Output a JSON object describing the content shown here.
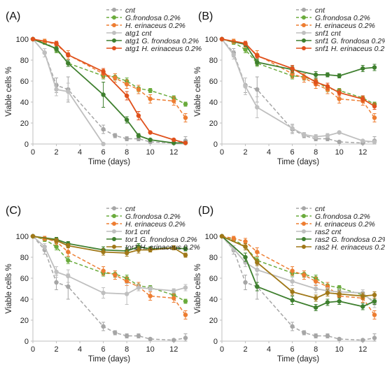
{
  "figure": {
    "colors": {
      "cnt": "#a6a6a6",
      "gfrondosa": "#6aab3c",
      "herinaceus": "#ed7d31",
      "mut_cnt": "#bfbfbf",
      "mut_gf": "#3e7f2e",
      "mut_he": "#e0511c",
      "mut_he_olive": "#a07818",
      "axis": "#bfbfbf"
    }
  },
  "chart_data": [
    {
      "type": "line",
      "panel_label": "(A)",
      "xlabel": "Time (days)",
      "ylabel": "Viable cells %",
      "xlim": [
        0,
        13
      ],
      "ylim": [
        0,
        100
      ],
      "xticks": [
        "0",
        "2",
        "4",
        "6",
        "8",
        "10",
        "12"
      ],
      "yticks": [
        "0",
        "20",
        "40",
        "60",
        "80",
        "100"
      ],
      "grid": false,
      "legend_position": "top-right",
      "series": [
        {
          "name": "cnt",
          "style": "dashed",
          "color": "#a6a6a6",
          "x": [
            0,
            1,
            2,
            3,
            6,
            7,
            8,
            9,
            10,
            12,
            13
          ],
          "y": [
            100,
            87,
            56,
            52,
            14,
            8,
            5,
            5,
            2,
            1,
            3
          ],
          "err": [
            0,
            4,
            7,
            12,
            4,
            2,
            2,
            2,
            1,
            1,
            4
          ]
        },
        {
          "name": "G.frondosa 0.2%",
          "style": "dashed",
          "color": "#6aab3c",
          "x": [
            0,
            1,
            2,
            3,
            6,
            7,
            8,
            9,
            10,
            12,
            13
          ],
          "y": [
            100,
            97,
            90,
            77,
            65,
            64,
            60,
            53,
            51,
            44,
            38
          ],
          "err": [
            0,
            2,
            3,
            3,
            3,
            3,
            3,
            3,
            2,
            2,
            2
          ]
        },
        {
          "name": "H. erinaceus 0.2%",
          "style": "dashed",
          "color": "#ed7d31",
          "x": [
            0,
            1,
            2,
            3,
            6,
            7,
            8,
            9,
            10,
            12,
            13
          ],
          "y": [
            100,
            98,
            95,
            85,
            67,
            63,
            57,
            52,
            43,
            41,
            25
          ],
          "err": [
            0,
            2,
            3,
            4,
            4,
            4,
            4,
            4,
            4,
            4,
            4
          ]
        },
        {
          "name": "atg1 cnt",
          "style": "solid",
          "color": "#bfbfbf",
          "x": [
            0,
            1,
            2,
            3,
            6
          ],
          "y": [
            100,
            87,
            52,
            50,
            0
          ],
          "err": [
            0,
            4,
            6,
            8,
            0
          ]
        },
        {
          "name": "atg1 G. frondosa 0.2%",
          "style": "solid",
          "color": "#3e7f2e",
          "x": [
            0,
            2,
            3,
            6,
            8,
            9,
            10,
            12,
            13
          ],
          "y": [
            100,
            91,
            77,
            47,
            23,
            8,
            4,
            1,
            1
          ],
          "err": [
            0,
            3,
            3,
            12,
            3,
            2,
            1,
            1,
            1
          ]
        },
        {
          "name": "atg1 H. erinaceus 0.2%",
          "style": "solid",
          "color": "#e0511c",
          "x": [
            0,
            2,
            3,
            6,
            8,
            9,
            10,
            12,
            13
          ],
          "y": [
            100,
            96,
            85,
            69,
            46,
            27,
            11,
            4,
            1
          ],
          "err": [
            0,
            2,
            2,
            3,
            4,
            4,
            1,
            1,
            1
          ]
        }
      ]
    },
    {
      "type": "line",
      "panel_label": "(B)",
      "xlabel": "Time (days)",
      "ylabel": "Viable cells %",
      "xlim": [
        0,
        13
      ],
      "ylim": [
        0,
        100
      ],
      "xticks": [
        "0",
        "2",
        "4",
        "6",
        "8",
        "10",
        "12"
      ],
      "yticks": [
        "0",
        "20",
        "40",
        "60",
        "80",
        "100"
      ],
      "grid": false,
      "legend_position": "top-right",
      "series": [
        {
          "name": "cnt",
          "style": "dashed",
          "color": "#a6a6a6",
          "x": [
            0,
            1,
            2,
            3,
            6,
            7,
            8,
            9,
            10,
            12,
            13
          ],
          "y": [
            100,
            87,
            56,
            52,
            14,
            8,
            5,
            5,
            2,
            1,
            3
          ],
          "err": [
            0,
            4,
            7,
            12,
            4,
            2,
            2,
            2,
            1,
            1,
            4
          ]
        },
        {
          "name": "G.frondosa 0.2%",
          "style": "dashed",
          "color": "#6aab3c",
          "x": [
            0,
            1,
            2,
            3,
            6,
            7,
            8,
            9,
            10,
            12,
            13
          ],
          "y": [
            100,
            97,
            90,
            77,
            65,
            64,
            60,
            53,
            51,
            44,
            38
          ],
          "err": [
            0,
            2,
            3,
            3,
            3,
            3,
            3,
            3,
            2,
            2,
            2
          ]
        },
        {
          "name": "H. erinaceus 0.2%",
          "style": "dashed",
          "color": "#ed7d31",
          "x": [
            0,
            1,
            2,
            3,
            6,
            7,
            8,
            9,
            10,
            12,
            13
          ],
          "y": [
            100,
            98,
            95,
            85,
            67,
            63,
            57,
            52,
            43,
            41,
            25
          ],
          "err": [
            0,
            2,
            3,
            4,
            4,
            4,
            4,
            4,
            4,
            4,
            4
          ]
        },
        {
          "name": "snf1 cnt",
          "style": "solid",
          "color": "#bfbfbf",
          "x": [
            0,
            1,
            2,
            3,
            6,
            7,
            8,
            9,
            10,
            12,
            13
          ],
          "y": [
            100,
            85,
            55,
            35,
            15,
            9,
            7,
            8,
            11,
            3,
            2
          ],
          "err": [
            0,
            4,
            8,
            10,
            4,
            2,
            2,
            2,
            1,
            1,
            1
          ]
        },
        {
          "name": "snf1 G. frondosa 0.2%",
          "style": "solid",
          "color": "#3e7f2e",
          "x": [
            0,
            2,
            3,
            6,
            8,
            9,
            10,
            12,
            13
          ],
          "y": [
            100,
            95,
            78,
            71,
            66,
            66,
            65,
            72,
            73
          ],
          "err": [
            0,
            2,
            3,
            3,
            3,
            2,
            2,
            3,
            3
          ]
        },
        {
          "name": "snf1 H. erinaceus 0.2%",
          "style": "solid",
          "color": "#e0511c",
          "x": [
            0,
            2,
            3,
            6,
            8,
            9,
            10,
            12,
            13
          ],
          "y": [
            100,
            96,
            84,
            72,
            59,
            55,
            49,
            43,
            36
          ],
          "err": [
            0,
            2,
            2,
            3,
            3,
            3,
            3,
            3,
            3
          ]
        }
      ]
    },
    {
      "type": "line",
      "panel_label": "(C)",
      "xlabel": "Time (days)",
      "ylabel": "Viable cells %",
      "xlim": [
        0,
        13
      ],
      "ylim": [
        0,
        100
      ],
      "xticks": [
        "0",
        "2",
        "4",
        "6",
        "8",
        "10",
        "12"
      ],
      "yticks": [
        "0",
        "20",
        "40",
        "60",
        "80",
        "100"
      ],
      "grid": false,
      "legend_position": "top-right",
      "series": [
        {
          "name": "cnt",
          "style": "dashed",
          "color": "#a6a6a6",
          "x": [
            0,
            1,
            2,
            3,
            6,
            7,
            8,
            9,
            10,
            12,
            13
          ],
          "y": [
            100,
            87,
            56,
            52,
            14,
            8,
            5,
            5,
            2,
            1,
            3
          ],
          "err": [
            0,
            4,
            7,
            12,
            4,
            2,
            2,
            2,
            1,
            1,
            4
          ]
        },
        {
          "name": "G.frondosa 0.2%",
          "style": "dashed",
          "color": "#6aab3c",
          "x": [
            0,
            1,
            2,
            3,
            6,
            7,
            8,
            9,
            10,
            12,
            13
          ],
          "y": [
            100,
            97,
            90,
            77,
            65,
            64,
            60,
            53,
            51,
            44,
            38
          ],
          "err": [
            0,
            2,
            3,
            3,
            3,
            3,
            3,
            3,
            2,
            2,
            2
          ]
        },
        {
          "name": "H. erinaceus 0.2%",
          "style": "dashed",
          "color": "#ed7d31",
          "x": [
            0,
            1,
            2,
            3,
            6,
            7,
            8,
            9,
            10,
            12,
            13
          ],
          "y": [
            100,
            98,
            95,
            85,
            67,
            63,
            57,
            52,
            43,
            41,
            25
          ],
          "err": [
            0,
            2,
            3,
            4,
            4,
            4,
            4,
            4,
            4,
            4,
            4
          ]
        },
        {
          "name": "tor1 cnt",
          "style": "solid",
          "color": "#bfbfbf",
          "x": [
            0,
            1,
            2,
            3,
            6,
            8,
            9,
            10,
            12,
            13
          ],
          "y": [
            100,
            90,
            66,
            62,
            46,
            45,
            51,
            50,
            48,
            51
          ],
          "err": [
            0,
            3,
            5,
            6,
            5,
            10,
            3,
            2,
            2,
            3
          ]
        },
        {
          "name": "tor1 G. frondosa 0.2%",
          "style": "solid",
          "color": "#3e7f2e",
          "x": [
            0,
            2,
            3,
            6,
            8,
            9,
            10,
            12,
            13
          ],
          "y": [
            100,
            97,
            93,
            87,
            86,
            90,
            88,
            89,
            88
          ],
          "err": [
            0,
            2,
            2,
            3,
            3,
            3,
            2,
            2,
            2
          ]
        },
        {
          "name": "tor1 H. erinaceus 0.2%",
          "style": "solid",
          "color": "#a07818",
          "x": [
            0,
            2,
            3,
            6,
            8,
            9,
            10,
            12,
            13
          ],
          "y": [
            100,
            96,
            91,
            85,
            84,
            87,
            87,
            89,
            82
          ],
          "err": [
            0,
            2,
            2,
            3,
            3,
            3,
            2,
            2,
            2
          ]
        }
      ]
    },
    {
      "type": "line",
      "panel_label": "(D)",
      "xlabel": "Time (days)",
      "ylabel": "Viable cells %",
      "xlim": [
        0,
        13
      ],
      "ylim": [
        0,
        100
      ],
      "xticks": [
        "0",
        "2",
        "4",
        "6",
        "8",
        "10",
        "12"
      ],
      "yticks": [
        "0",
        "20",
        "40",
        "60",
        "80",
        "100"
      ],
      "grid": false,
      "legend_position": "top-right",
      "series": [
        {
          "name": "cnt",
          "style": "dashed",
          "color": "#a6a6a6",
          "x": [
            0,
            1,
            2,
            3,
            6,
            7,
            8,
            9,
            10,
            12,
            13
          ],
          "y": [
            100,
            87,
            56,
            52,
            14,
            8,
            5,
            5,
            2,
            1,
            3
          ],
          "err": [
            0,
            4,
            7,
            12,
            4,
            2,
            2,
            2,
            1,
            1,
            4
          ]
        },
        {
          "name": "G.frondosa 0.2%",
          "style": "dashed",
          "color": "#6aab3c",
          "x": [
            0,
            1,
            2,
            3,
            6,
            7,
            8,
            9,
            10,
            12,
            13
          ],
          "y": [
            100,
            97,
            90,
            77,
            65,
            64,
            60,
            53,
            51,
            44,
            38
          ],
          "err": [
            0,
            2,
            3,
            3,
            3,
            3,
            3,
            3,
            2,
            2,
            2
          ]
        },
        {
          "name": "H. erinaceus 0.2%",
          "style": "dashed",
          "color": "#ed7d31",
          "x": [
            0,
            1,
            2,
            3,
            6,
            7,
            8,
            9,
            10,
            12,
            13
          ],
          "y": [
            100,
            98,
            95,
            85,
            67,
            63,
            57,
            52,
            43,
            41,
            25
          ],
          "err": [
            0,
            2,
            3,
            4,
            4,
            4,
            4,
            4,
            4,
            4,
            4
          ]
        },
        {
          "name": "ras2 cnt",
          "style": "solid",
          "color": "#bfbfbf",
          "x": [
            0,
            1,
            2,
            3,
            6,
            8,
            9,
            10,
            12,
            13
          ],
          "y": [
            100,
            88,
            75,
            68,
            57,
            50,
            48,
            47,
            46,
            36
          ],
          "err": [
            0,
            3,
            4,
            5,
            4,
            4,
            3,
            3,
            3,
            4
          ]
        },
        {
          "name": "ras2 G. frondosa 0.2%",
          "style": "solid",
          "color": "#3e7f2e",
          "x": [
            0,
            2,
            3,
            6,
            8,
            9,
            10,
            12,
            13
          ],
          "y": [
            100,
            80,
            52,
            39,
            32,
            37,
            38,
            33,
            38
          ],
          "err": [
            0,
            4,
            4,
            4,
            3,
            3,
            3,
            3,
            3
          ]
        },
        {
          "name": "ras2 H. erinaceus 0.2%",
          "style": "solid",
          "color": "#a07818",
          "x": [
            0,
            2,
            3,
            6,
            8,
            9,
            10,
            12,
            13
          ],
          "y": [
            100,
            90,
            75,
            47,
            41,
            46,
            45,
            43,
            44
          ],
          "err": [
            0,
            3,
            3,
            3,
            3,
            3,
            3,
            3,
            3
          ]
        }
      ]
    }
  ]
}
